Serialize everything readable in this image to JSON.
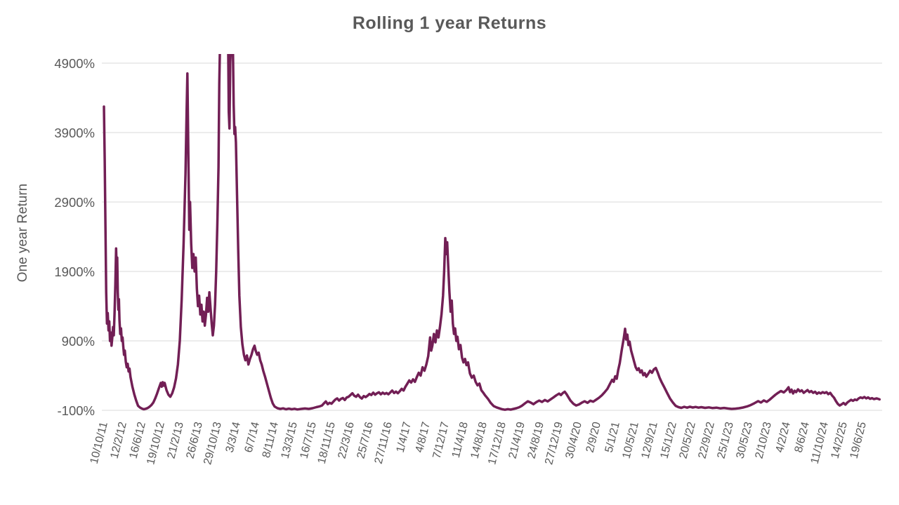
{
  "page": {
    "background": "#FFFFFF"
  },
  "chart_data": {
    "type": "line",
    "title": "Rolling 1 year Returns",
    "ylabel": "One year Return",
    "xlabel": "",
    "legend": "none",
    "grid": "horizontal",
    "line_color": "#721F55",
    "grid_color": "#D9D9D9",
    "text_color": "#595959",
    "ylim": [
      -100,
      5060
    ],
    "y_unit": "percent",
    "x_unit": "date tick index (0 = 10/10/11, 40 = 19/6/25, ~18-week spacing)",
    "y_tick_values": [
      4900,
      3900,
      2900,
      1900,
      900,
      -100
    ],
    "y_tick_labels": [
      "4900%",
      "3900%",
      "2900%",
      "1900%",
      "900%",
      "-100%"
    ],
    "x_tick_labels": [
      "10/10/11",
      "12/2/12",
      "16/6/12",
      "19/10/12",
      "21/2/13",
      "26/6/13",
      "29/10/13",
      "3/3/14",
      "6/7/14",
      "8/11/14",
      "13/3/15",
      "16/7/15",
      "18/11/15",
      "22/3/16",
      "25/7/16",
      "27/11/16",
      "1/4/17",
      "4/8/17",
      "7/12/17",
      "11/4/18",
      "14/8/18",
      "17/12/18",
      "21/4/19",
      "24/8/19",
      "27/12/19",
      "30/4/20",
      "2/9/20",
      "5/1/21",
      "10/5/21",
      "12/9/21",
      "15/1/22",
      "20/5/22",
      "22/9/22",
      "25/1/23",
      "30/5/23",
      "2/10/23",
      "4/2/24",
      "8/6/24",
      "11/10/24",
      "14/2/25",
      "19/6/25"
    ],
    "points": [
      [
        0,
        4274
      ],
      [
        0.04,
        3500
      ],
      [
        0.08,
        2500
      ],
      [
        0.12,
        1600
      ],
      [
        0.16,
        1150
      ],
      [
        0.2,
        1300
      ],
      [
        0.24,
        1050
      ],
      [
        0.28,
        1180
      ],
      [
        0.32,
        900
      ],
      [
        0.36,
        1020
      ],
      [
        0.4,
        830
      ],
      [
        0.44,
        950
      ],
      [
        0.48,
        1100
      ],
      [
        0.52,
        980
      ],
      [
        0.56,
        1300
      ],
      [
        0.6,
        1700
      ],
      [
        0.64,
        2230
      ],
      [
        0.67,
        1950
      ],
      [
        0.7,
        2100
      ],
      [
        0.73,
        1600
      ],
      [
        0.76,
        1350
      ],
      [
        0.79,
        1500
      ],
      [
        0.82,
        1200
      ],
      [
        0.86,
        1000
      ],
      [
        0.9,
        1080
      ],
      [
        0.94,
        900
      ],
      [
        0.98,
        950
      ],
      [
        1.02,
        820
      ],
      [
        1.06,
        700
      ],
      [
        1.1,
        760
      ],
      [
        1.15,
        600
      ],
      [
        1.2,
        520
      ],
      [
        1.25,
        570
      ],
      [
        1.3,
        460
      ],
      [
        1.35,
        500
      ],
      [
        1.4,
        380
      ],
      [
        1.5,
        240
      ],
      [
        1.6,
        130
      ],
      [
        1.7,
        40
      ],
      [
        1.8,
        -35
      ],
      [
        1.9,
        -60
      ],
      [
        2,
        -75
      ],
      [
        2.1,
        -85
      ],
      [
        2.2,
        -78
      ],
      [
        2.3,
        -68
      ],
      [
        2.4,
        -50
      ],
      [
        2.5,
        -25
      ],
      [
        2.6,
        10
      ],
      [
        2.7,
        70
      ],
      [
        2.8,
        140
      ],
      [
        2.9,
        220
      ],
      [
        3,
        295
      ],
      [
        3.05,
        240
      ],
      [
        3.1,
        305
      ],
      [
        3.15,
        255
      ],
      [
        3.2,
        295
      ],
      [
        3.3,
        190
      ],
      [
        3.4,
        125
      ],
      [
        3.5,
        95
      ],
      [
        3.6,
        145
      ],
      [
        3.7,
        230
      ],
      [
        3.8,
        360
      ],
      [
        3.9,
        560
      ],
      [
        4,
        900
      ],
      [
        4.1,
        1500
      ],
      [
        4.2,
        2300
      ],
      [
        4.3,
        3300
      ],
      [
        4.36,
        4200
      ],
      [
        4.4,
        4750
      ],
      [
        4.46,
        3400
      ],
      [
        4.5,
        2500
      ],
      [
        4.54,
        2900
      ],
      [
        4.6,
        2300
      ],
      [
        4.66,
        1950
      ],
      [
        4.72,
        2150
      ],
      [
        4.78,
        1900
      ],
      [
        4.84,
        2100
      ],
      [
        4.9,
        1650
      ],
      [
        4.96,
        1400
      ],
      [
        5.02,
        1550
      ],
      [
        5.08,
        1280
      ],
      [
        5.14,
        1420
      ],
      [
        5.2,
        1180
      ],
      [
        5.26,
        1320
      ],
      [
        5.32,
        1120
      ],
      [
        5.38,
        1280
      ],
      [
        5.44,
        1520
      ],
      [
        5.5,
        1320
      ],
      [
        5.56,
        1600
      ],
      [
        5.62,
        1380
      ],
      [
        5.68,
        1150
      ],
      [
        5.74,
        980
      ],
      [
        5.8,
        1120
      ],
      [
        5.86,
        1420
      ],
      [
        5.92,
        1900
      ],
      [
        5.98,
        2600
      ],
      [
        6.04,
        3400
      ],
      [
        6.08,
        4600
      ],
      [
        6.12,
        5150
      ],
      [
        6.2,
        5200
      ],
      [
        6.3,
        5200
      ],
      [
        6.4,
        5150
      ],
      [
        6.48,
        5200
      ],
      [
        6.55,
        5150
      ],
      [
        6.58,
        4200
      ],
      [
        6.62,
        3960
      ],
      [
        6.66,
        4900
      ],
      [
        6.7,
        5150
      ],
      [
        6.76,
        5200
      ],
      [
        6.8,
        5150
      ],
      [
        6.84,
        4300
      ],
      [
        6.88,
        3880
      ],
      [
        6.92,
        3980
      ],
      [
        6.96,
        3760
      ],
      [
        7.02,
        3000
      ],
      [
        7.08,
        2200
      ],
      [
        7.14,
        1550
      ],
      [
        7.22,
        1100
      ],
      [
        7.3,
        850
      ],
      [
        7.38,
        700
      ],
      [
        7.46,
        620
      ],
      [
        7.54,
        690
      ],
      [
        7.62,
        560
      ],
      [
        7.7,
        640
      ],
      [
        7.78,
        700
      ],
      [
        7.86,
        780
      ],
      [
        7.94,
        830
      ],
      [
        8,
        760
      ],
      [
        8.08,
        700
      ],
      [
        8.16,
        730
      ],
      [
        8.24,
        620
      ],
      [
        8.32,
        560
      ],
      [
        8.4,
        470
      ],
      [
        8.5,
        380
      ],
      [
        8.6,
        280
      ],
      [
        8.7,
        180
      ],
      [
        8.8,
        80
      ],
      [
        8.9,
        0
      ],
      [
        9,
        -45
      ],
      [
        9.15,
        -70
      ],
      [
        9.3,
        -80
      ],
      [
        9.45,
        -72
      ],
      [
        9.6,
        -85
      ],
      [
        9.75,
        -76
      ],
      [
        9.9,
        -85
      ],
      [
        10.05,
        -78
      ],
      [
        10.2,
        -88
      ],
      [
        10.4,
        -80
      ],
      [
        10.6,
        -74
      ],
      [
        10.8,
        -80
      ],
      [
        11,
        -70
      ],
      [
        11.2,
        -55
      ],
      [
        11.35,
        -45
      ],
      [
        11.5,
        -30
      ],
      [
        11.6,
        0
      ],
      [
        11.7,
        28
      ],
      [
        11.8,
        -12
      ],
      [
        11.9,
        8
      ],
      [
        12,
        -5
      ],
      [
        12.1,
        25
      ],
      [
        12.2,
        55
      ],
      [
        12.3,
        72
      ],
      [
        12.4,
        40
      ],
      [
        12.5,
        65
      ],
      [
        12.6,
        78
      ],
      [
        12.7,
        48
      ],
      [
        12.8,
        85
      ],
      [
        12.9,
        95
      ],
      [
        13,
        120
      ],
      [
        13.1,
        145
      ],
      [
        13.2,
        110
      ],
      [
        13.3,
        95
      ],
      [
        13.4,
        125
      ],
      [
        13.5,
        90
      ],
      [
        13.6,
        70
      ],
      [
        13.7,
        105
      ],
      [
        13.8,
        90
      ],
      [
        13.9,
        110
      ],
      [
        14,
        135
      ],
      [
        14.1,
        120
      ],
      [
        14.2,
        155
      ],
      [
        14.3,
        125
      ],
      [
        14.4,
        145
      ],
      [
        14.5,
        160
      ],
      [
        14.6,
        130
      ],
      [
        14.7,
        155
      ],
      [
        14.8,
        135
      ],
      [
        14.9,
        150
      ],
      [
        15,
        130
      ],
      [
        15.1,
        158
      ],
      [
        15.2,
        185
      ],
      [
        15.3,
        150
      ],
      [
        15.4,
        170
      ],
      [
        15.5,
        145
      ],
      [
        15.6,
        175
      ],
      [
        15.7,
        210
      ],
      [
        15.8,
        185
      ],
      [
        15.9,
        240
      ],
      [
        16,
        285
      ],
      [
        16.1,
        330
      ],
      [
        16.2,
        300
      ],
      [
        16.3,
        345
      ],
      [
        16.4,
        310
      ],
      [
        16.5,
        380
      ],
      [
        16.6,
        440
      ],
      [
        16.7,
        400
      ],
      [
        16.8,
        520
      ],
      [
        16.9,
        470
      ],
      [
        17,
        560
      ],
      [
        17.1,
        680
      ],
      [
        17.2,
        950
      ],
      [
        17.26,
        760
      ],
      [
        17.32,
        830
      ],
      [
        17.4,
        1000
      ],
      [
        17.48,
        880
      ],
      [
        17.56,
        1050
      ],
      [
        17.64,
        950
      ],
      [
        17.72,
        1100
      ],
      [
        17.8,
        1280
      ],
      [
        17.88,
        1550
      ],
      [
        17.94,
        1900
      ],
      [
        18,
        2380
      ],
      [
        18.05,
        2150
      ],
      [
        18.1,
        2320
      ],
      [
        18.16,
        1950
      ],
      [
        18.22,
        1600
      ],
      [
        18.28,
        1320
      ],
      [
        18.34,
        1480
      ],
      [
        18.4,
        1150
      ],
      [
        18.46,
        1000
      ],
      [
        18.52,
        1080
      ],
      [
        18.58,
        900
      ],
      [
        18.64,
        960
      ],
      [
        18.72,
        780
      ],
      [
        18.8,
        840
      ],
      [
        18.88,
        660
      ],
      [
        18.96,
        590
      ],
      [
        19.04,
        640
      ],
      [
        19.12,
        550
      ],
      [
        19.2,
        590
      ],
      [
        19.3,
        430
      ],
      [
        19.4,
        370
      ],
      [
        19.5,
        400
      ],
      [
        19.6,
        310
      ],
      [
        19.7,
        260
      ],
      [
        19.8,
        285
      ],
      [
        19.9,
        190
      ],
      [
        20,
        155
      ],
      [
        20.1,
        115
      ],
      [
        20.25,
        65
      ],
      [
        20.4,
        5
      ],
      [
        20.55,
        -38
      ],
      [
        20.7,
        -58
      ],
      [
        20.85,
        -72
      ],
      [
        21,
        -85
      ],
      [
        21.15,
        -92
      ],
      [
        21.3,
        -84
      ],
      [
        21.45,
        -90
      ],
      [
        21.6,
        -80
      ],
      [
        21.75,
        -70
      ],
      [
        21.9,
        -56
      ],
      [
        22.05,
        -32
      ],
      [
        22.2,
        0
      ],
      [
        22.35,
        30
      ],
      [
        22.5,
        12
      ],
      [
        22.65,
        -12
      ],
      [
        22.8,
        18
      ],
      [
        22.95,
        40
      ],
      [
        23.1,
        20
      ],
      [
        23.25,
        48
      ],
      [
        23.4,
        28
      ],
      [
        23.55,
        58
      ],
      [
        23.7,
        85
      ],
      [
        23.85,
        115
      ],
      [
        24,
        140
      ],
      [
        24.1,
        120
      ],
      [
        24.2,
        150
      ],
      [
        24.3,
        168
      ],
      [
        24.4,
        130
      ],
      [
        24.5,
        85
      ],
      [
        24.6,
        40
      ],
      [
        24.75,
        -5
      ],
      [
        24.9,
        -30
      ],
      [
        25.05,
        -15
      ],
      [
        25.2,
        10
      ],
      [
        25.35,
        30
      ],
      [
        25.5,
        8
      ],
      [
        25.65,
        38
      ],
      [
        25.8,
        24
      ],
      [
        25.95,
        52
      ],
      [
        26.1,
        80
      ],
      [
        26.25,
        115
      ],
      [
        26.4,
        160
      ],
      [
        26.55,
        210
      ],
      [
        26.7,
        290
      ],
      [
        26.8,
        340
      ],
      [
        26.88,
        310
      ],
      [
        26.96,
        390
      ],
      [
        27.04,
        355
      ],
      [
        27.12,
        480
      ],
      [
        27.2,
        580
      ],
      [
        27.3,
        760
      ],
      [
        27.42,
        950
      ],
      [
        27.48,
        1075
      ],
      [
        27.54,
        920
      ],
      [
        27.6,
        990
      ],
      [
        27.66,
        840
      ],
      [
        27.72,
        890
      ],
      [
        27.8,
        760
      ],
      [
        27.88,
        680
      ],
      [
        27.96,
        600
      ],
      [
        28.04,
        520
      ],
      [
        28.12,
        480
      ],
      [
        28.2,
        505
      ],
      [
        28.28,
        445
      ],
      [
        28.36,
        475
      ],
      [
        28.44,
        405
      ],
      [
        28.52,
        435
      ],
      [
        28.6,
        385
      ],
      [
        28.7,
        425
      ],
      [
        28.8,
        470
      ],
      [
        28.9,
        440
      ],
      [
        29,
        490
      ],
      [
        29.1,
        510
      ],
      [
        29.2,
        445
      ],
      [
        29.3,
        370
      ],
      [
        29.4,
        310
      ],
      [
        29.55,
        230
      ],
      [
        29.7,
        150
      ],
      [
        29.85,
        70
      ],
      [
        30,
        12
      ],
      [
        30.15,
        -35
      ],
      [
        30.3,
        -55
      ],
      [
        30.45,
        -65
      ],
      [
        30.6,
        -50
      ],
      [
        30.75,
        -62
      ],
      [
        30.9,
        -48
      ],
      [
        31.05,
        -60
      ],
      [
        31.2,
        -52
      ],
      [
        31.35,
        -62
      ],
      [
        31.5,
        -55
      ],
      [
        31.7,
        -65
      ],
      [
        31.9,
        -58
      ],
      [
        32.1,
        -68
      ],
      [
        32.3,
        -62
      ],
      [
        32.5,
        -72
      ],
      [
        32.7,
        -66
      ],
      [
        32.9,
        -74
      ],
      [
        33.1,
        -80
      ],
      [
        33.3,
        -76
      ],
      [
        33.5,
        -70
      ],
      [
        33.7,
        -60
      ],
      [
        33.9,
        -45
      ],
      [
        34.1,
        -25
      ],
      [
        34.3,
        2
      ],
      [
        34.5,
        32
      ],
      [
        34.65,
        12
      ],
      [
        34.8,
        42
      ],
      [
        34.95,
        22
      ],
      [
        35.1,
        52
      ],
      [
        35.25,
        88
      ],
      [
        35.4,
        122
      ],
      [
        35.55,
        152
      ],
      [
        35.7,
        178
      ],
      [
        35.85,
        158
      ],
      [
        36,
        195
      ],
      [
        36.1,
        232
      ],
      [
        36.18,
        162
      ],
      [
        36.26,
        198
      ],
      [
        36.34,
        142
      ],
      [
        36.42,
        182
      ],
      [
        36.5,
        162
      ],
      [
        36.6,
        202
      ],
      [
        36.7,
        172
      ],
      [
        36.8,
        188
      ],
      [
        36.9,
        152
      ],
      [
        37,
        172
      ],
      [
        37.1,
        192
      ],
      [
        37.2,
        162
      ],
      [
        37.3,
        178
      ],
      [
        37.4,
        152
      ],
      [
        37.5,
        168
      ],
      [
        37.6,
        138
      ],
      [
        37.7,
        158
      ],
      [
        37.8,
        142
      ],
      [
        37.9,
        162
      ],
      [
        38,
        148
      ],
      [
        38.1,
        162
      ],
      [
        38.2,
        132
      ],
      [
        38.3,
        152
      ],
      [
        38.4,
        112
      ],
      [
        38.5,
        82
      ],
      [
        38.6,
        32
      ],
      [
        38.7,
        -8
      ],
      [
        38.8,
        -30
      ],
      [
        38.9,
        -14
      ],
      [
        39,
        6
      ],
      [
        39.1,
        -18
      ],
      [
        39.2,
        12
      ],
      [
        39.3,
        32
      ],
      [
        39.4,
        52
      ],
      [
        39.5,
        36
      ],
      [
        39.6,
        56
      ],
      [
        39.7,
        46
      ],
      [
        39.8,
        72
      ],
      [
        39.9,
        86
      ],
      [
        40,
        76
      ],
      [
        40.1,
        92
      ],
      [
        40.2,
        72
      ],
      [
        40.3,
        86
      ],
      [
        40.4,
        66
      ],
      [
        40.5,
        76
      ],
      [
        40.6,
        62
      ],
      [
        40.75,
        72
      ],
      [
        40.9,
        58
      ]
    ]
  }
}
